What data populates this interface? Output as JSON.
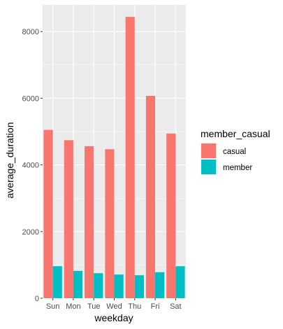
{
  "chart_data": {
    "type": "bar",
    "categories": [
      "Sun",
      "Mon",
      "Tue",
      "Wed",
      "Thu",
      "Fri",
      "Sat"
    ],
    "series": [
      {
        "name": "casual",
        "values": [
          5050,
          4740,
          4560,
          4470,
          8440,
          6070,
          4940
        ],
        "color": "#F8766D"
      },
      {
        "name": "member",
        "values": [
          960,
          820,
          750,
          710,
          690,
          780,
          960
        ],
        "color": "#00BFC4"
      }
    ],
    "xlabel": "weekday",
    "ylabel": "average_duration",
    "legend_title": "member_casual",
    "ylim": [
      0,
      8800
    ],
    "yticks": [
      0,
      2000,
      4000,
      6000,
      8000
    ],
    "grid": true,
    "legend_position": "right",
    "panel_color": "#EBEBEB"
  }
}
